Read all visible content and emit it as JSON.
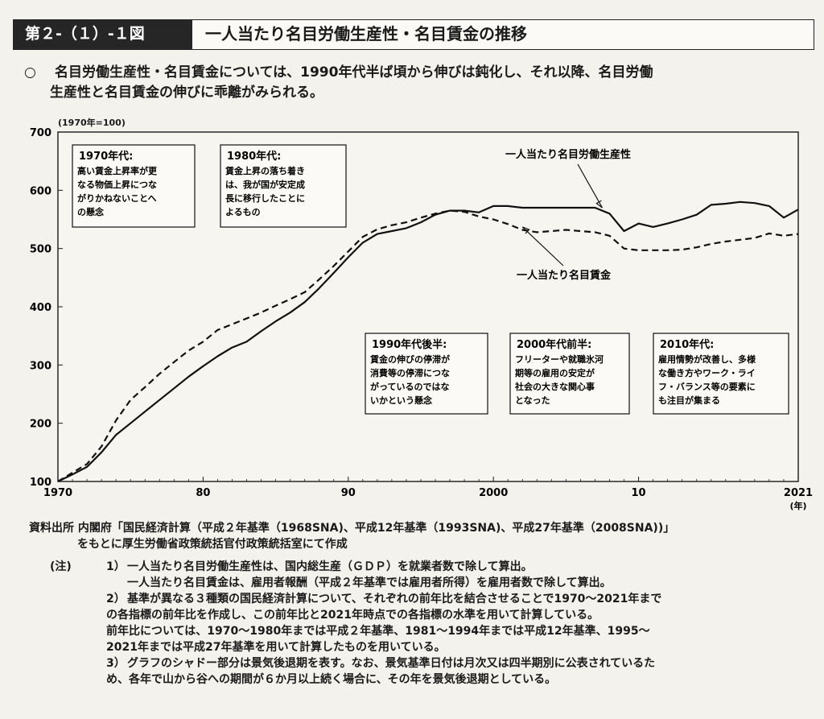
{
  "header": {
    "figure_number": "第２-（１）-１図",
    "figure_title": "一人当たり名目労働生産性・名目賃金の推移"
  },
  "summary": {
    "bullet": "○",
    "line1": "名目労働生産性・名目賃金については、1990年代半ば頃から伸びは鈍化し、それ以降、名目労働",
    "line2": "生産性と名目賃金の伸びに乖離がみられる。"
  },
  "chart_data": {
    "type": "line",
    "unit_label": "(1970年=100)",
    "x_unit": "(年)",
    "xlim": [
      1970,
      2021
    ],
    "ylim": [
      100,
      700
    ],
    "y_ticks": [
      100,
      200,
      300,
      400,
      500,
      600,
      700
    ],
    "x_ticks": [
      {
        "year": 1970,
        "label": "1970"
      },
      {
        "year": 1980,
        "label": "80"
      },
      {
        "year": 1990,
        "label": "90"
      },
      {
        "year": 2000,
        "label": "2000"
      },
      {
        "year": 2010,
        "label": "10"
      },
      {
        "year": 2021,
        "label": "2021"
      }
    ],
    "series": [
      {
        "name": "一人当たり名目労働生産性",
        "style": "solid",
        "points": [
          [
            1970,
            100
          ],
          [
            1971,
            112
          ],
          [
            1972,
            125
          ],
          [
            1973,
            150
          ],
          [
            1974,
            180
          ],
          [
            1975,
            200
          ],
          [
            1976,
            220
          ],
          [
            1977,
            240
          ],
          [
            1978,
            260
          ],
          [
            1979,
            280
          ],
          [
            1980,
            298
          ],
          [
            1981,
            315
          ],
          [
            1982,
            330
          ],
          [
            1983,
            340
          ],
          [
            1984,
            358
          ],
          [
            1985,
            375
          ],
          [
            1986,
            390
          ],
          [
            1987,
            408
          ],
          [
            1988,
            432
          ],
          [
            1989,
            458
          ],
          [
            1990,
            485
          ],
          [
            1991,
            510
          ],
          [
            1992,
            525
          ],
          [
            1993,
            530
          ],
          [
            1994,
            535
          ],
          [
            1995,
            545
          ],
          [
            1996,
            558
          ],
          [
            1997,
            565
          ],
          [
            1998,
            565
          ],
          [
            1999,
            562
          ],
          [
            2000,
            573
          ],
          [
            2001,
            573
          ],
          [
            2002,
            570
          ],
          [
            2003,
            570
          ],
          [
            2004,
            570
          ],
          [
            2005,
            570
          ],
          [
            2006,
            570
          ],
          [
            2007,
            570
          ],
          [
            2008,
            560
          ],
          [
            2009,
            530
          ],
          [
            2010,
            543
          ],
          [
            2011,
            537
          ],
          [
            2012,
            543
          ],
          [
            2013,
            550
          ],
          [
            2014,
            558
          ],
          [
            2015,
            575
          ],
          [
            2016,
            577
          ],
          [
            2017,
            580
          ],
          [
            2018,
            578
          ],
          [
            2019,
            573
          ],
          [
            2020,
            553
          ],
          [
            2021,
            567
          ]
        ]
      },
      {
        "name": "一人当たり名目賃金",
        "style": "dashed",
        "points": [
          [
            1970,
            100
          ],
          [
            1971,
            115
          ],
          [
            1972,
            130
          ],
          [
            1973,
            160
          ],
          [
            1974,
            205
          ],
          [
            1975,
            240
          ],
          [
            1976,
            262
          ],
          [
            1977,
            285
          ],
          [
            1978,
            305
          ],
          [
            1979,
            325
          ],
          [
            1980,
            340
          ],
          [
            1981,
            360
          ],
          [
            1982,
            370
          ],
          [
            1983,
            380
          ],
          [
            1984,
            390
          ],
          [
            1985,
            402
          ],
          [
            1986,
            413
          ],
          [
            1987,
            425
          ],
          [
            1988,
            447
          ],
          [
            1989,
            470
          ],
          [
            1990,
            495
          ],
          [
            1991,
            520
          ],
          [
            1992,
            533
          ],
          [
            1993,
            540
          ],
          [
            1994,
            545
          ],
          [
            1995,
            553
          ],
          [
            1996,
            560
          ],
          [
            1997,
            565
          ],
          [
            1998,
            563
          ],
          [
            1999,
            555
          ],
          [
            2000,
            550
          ],
          [
            2001,
            542
          ],
          [
            2002,
            532
          ],
          [
            2003,
            528
          ],
          [
            2004,
            530
          ],
          [
            2005,
            532
          ],
          [
            2006,
            530
          ],
          [
            2007,
            528
          ],
          [
            2008,
            522
          ],
          [
            2009,
            500
          ],
          [
            2010,
            497
          ],
          [
            2011,
            497
          ],
          [
            2012,
            497
          ],
          [
            2013,
            498
          ],
          [
            2014,
            502
          ],
          [
            2015,
            508
          ],
          [
            2016,
            512
          ],
          [
            2017,
            515
          ],
          [
            2018,
            518
          ],
          [
            2019,
            526
          ],
          [
            2020,
            522
          ],
          [
            2021,
            525
          ]
        ]
      }
    ],
    "series_labels": [
      {
        "text": "一人当たり名目労働生産性",
        "ax": 2007.5,
        "ay": 570
      },
      {
        "text": "一人当たり名目賃金",
        "ax": 2002,
        "ay": 537
      }
    ],
    "annotations": [
      {
        "title": "1970年代:",
        "lines": [
          "高い賃金上昇率が更",
          "なる物価上昇につな",
          "がりかねないことへ",
          "の懸念"
        ]
      },
      {
        "title": "1980年代:",
        "lines": [
          "賃金上昇の落ち着き",
          "は、我が国が安定成",
          "長に移行したことに",
          "よるもの"
        ]
      },
      {
        "title": "1990年代後半:",
        "lines": [
          "賃金の伸びの停滞が",
          "消費等の停滞につな",
          "がっているのではな",
          "いかという懸念"
        ]
      },
      {
        "title": "2000年代前半:",
        "lines": [
          "フリーターや就職氷河",
          "期等の雇用の安定が",
          "社会の大きな関心事",
          "となった"
        ]
      },
      {
        "title": "2010年代:",
        "lines": [
          "雇用情勢が改善し、多様",
          "な働き方やワーク・ライ",
          "フ・バランス等の要素に",
          "も注目が集まる"
        ]
      }
    ]
  },
  "source": {
    "line1": "資料出所  内閣府「国民経済計算（平成２年基準（1968SNA)、平成12年基準（1993SNA)、平成27年基準（2008SNA))」",
    "line2": "をもとに厚生労働省政策統括官付政策統括室にて作成"
  },
  "notes": {
    "label": "(注)",
    "items": [
      {
        "num": "1）",
        "lines": [
          "一人当たり名目労働生産性は、国内総生産（ＧＤＰ）を就業者数で除して算出。",
          "一人当たり名目賃金は、雇用者報酬（平成２年基準では雇用者所得）を雇用者数で除して算出。"
        ]
      },
      {
        "num": "2）",
        "lines": [
          "基準が異なる３種類の国民経済計算について、それぞれの前年比を結合させることで1970～2021年まで",
          "の各指標の前年比を作成し、この前年比と2021年時点での各指標の水準を用いて計算している。",
          "前年比については、1970～1980年までは平成２年基準、1981～1994年までは平成12年基準、1995～",
          "2021年までは平成27年基準を用いて計算したものを用いている。"
        ]
      },
      {
        "num": "3）",
        "lines": [
          "グラフのシャドー部分は景気後退期を表す。なお、景気基準日付は月次又は四半期別に公表されているた",
          "め、各年で山から谷への期間が６か月以上続く場合に、その年を景気後退期としている。"
        ]
      }
    ]
  }
}
